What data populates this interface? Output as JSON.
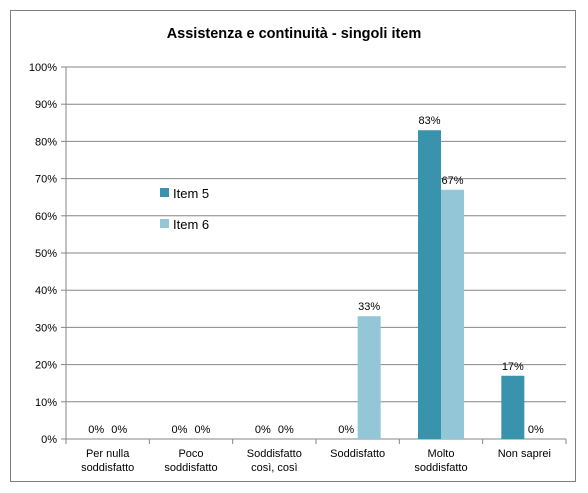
{
  "chart_data": {
    "type": "bar",
    "title": "Assistenza e continuità - singoli item",
    "xlabel": "",
    "ylabel": "",
    "ylim": [
      0,
      100
    ],
    "y_ticks": [
      "0%",
      "10%",
      "20%",
      "30%",
      "40%",
      "50%",
      "60%",
      "70%",
      "80%",
      "90%",
      "100%"
    ],
    "grid": true,
    "legend_position": "left",
    "categories": [
      [
        "Per nulla",
        "soddisfatto"
      ],
      [
        "Poco",
        "soddisfatto"
      ],
      [
        "Soddisfatto",
        "così, così"
      ],
      [
        "Soddisfatto"
      ],
      [
        "Molto",
        "soddisfatto"
      ],
      [
        "Non saprei"
      ]
    ],
    "series": [
      {
        "name": "Item 5",
        "color": "#3a93ad",
        "values": [
          0,
          0,
          0,
          0,
          83,
          17
        ],
        "labels": [
          "0%",
          "0%",
          "0%",
          "0%",
          "83%",
          "17%"
        ]
      },
      {
        "name": "Item 6",
        "color": "#93c6d6",
        "values": [
          0,
          0,
          0,
          33,
          67,
          0
        ],
        "labels": [
          "0%",
          "0%",
          "0%",
          "33%",
          "67%",
          "0%"
        ]
      }
    ]
  }
}
